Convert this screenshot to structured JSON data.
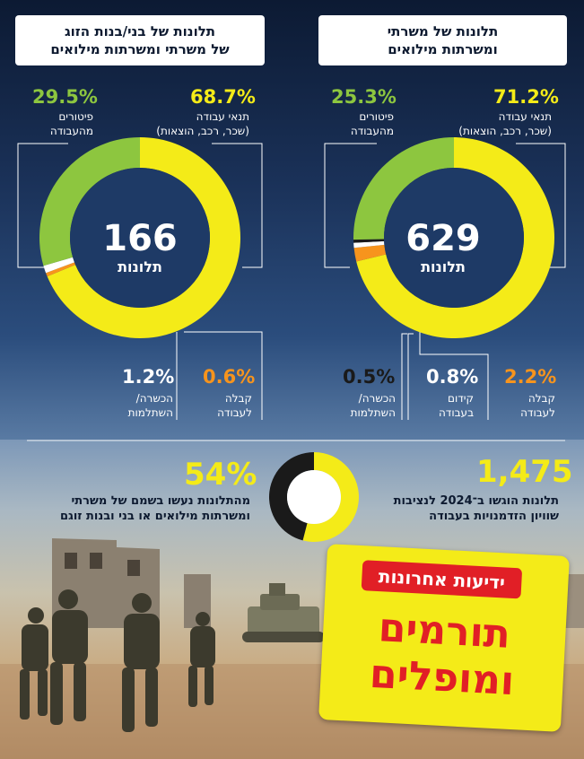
{
  "chart_data": [
    {
      "type": "pie",
      "title": "תלונות של משרתי ומשרתות מילואים",
      "center_value": "629",
      "center_label": "תלונות",
      "series": [
        {
          "name": "תנאי עבודה (שכר, רכב, הוצאות)",
          "value": 71.2,
          "label": "71.2%",
          "color": "#f4eb18"
        },
        {
          "name": "קבלה לעבודה",
          "value": 2.2,
          "label": "2.2%",
          "color": "#f7941d"
        },
        {
          "name": "קידום בעבודה",
          "value": 0.8,
          "label": "0.8%",
          "color": "#ffffff"
        },
        {
          "name": "הכשרה/ השתלמות",
          "value": 0.5,
          "label": "0.5%",
          "color": "#1a1a1a"
        },
        {
          "name": "פיטורים מהעבודה",
          "value": 25.3,
          "label": "25.3%",
          "color": "#8dc63f"
        }
      ]
    },
    {
      "type": "pie",
      "title": "תלונות של בני/בנות הזוג של משרתי ומשרתות מילואים",
      "center_value": "166",
      "center_label": "תלונות",
      "series": [
        {
          "name": "תנאי עבודה (שכר, רכב, הוצאות)",
          "value": 68.7,
          "label": "68.7%",
          "color": "#f4eb18"
        },
        {
          "name": "קבלה לעבודה",
          "value": 0.6,
          "label": "0.6%",
          "color": "#f7941d"
        },
        {
          "name": "הכשרה/ השתלמות",
          "value": 1.2,
          "label": "1.2%",
          "color": "#ffffff"
        },
        {
          "name": "פיטורים מהעבודה",
          "value": 29.5,
          "label": "29.5%",
          "color": "#8dc63f"
        }
      ]
    },
    {
      "type": "pie",
      "series": [
        {
          "name": "מהתלונות נעשו בשמם של משרתי ומשרתות מילואים או בני ובנות זוגם",
          "value": 54,
          "label": "54%",
          "color": "#f4eb18"
        },
        {
          "name": "",
          "value": 46,
          "color": "#1a1a1a"
        }
      ]
    }
  ],
  "right_panel": {
    "title_line1": "תלונות של משרתי",
    "title_line2": "ומשרתות מילואים",
    "labels": {
      "work_conditions_1": "תנאי עבודה",
      "work_conditions_2": "(שכר, רכב, הוצאות)",
      "dismissal_1": "פיטורים",
      "dismissal_2": "מהעבודה",
      "hiring_1": "קבלה",
      "hiring_2": "לעבודה",
      "promotion_1": "קידום",
      "promotion_2": "בעבודה",
      "training_1": "הכשרה/",
      "training_2": "השתלמות"
    }
  },
  "left_panel": {
    "title_line1": "תלונות של בני/בנות הזוג",
    "title_line2": "של משרתי ומשרתות מילואים",
    "labels": {
      "work_conditions_1": "תנאי עבודה",
      "work_conditions_2": "(שכר, רכב, הוצאות)",
      "dismissal_1": "פיטורים",
      "dismissal_2": "מהעבודה",
      "hiring_1": "קבלה",
      "hiring_2": "לעבודה",
      "training_1": "הכשרה/",
      "training_2": "השתלמות"
    }
  },
  "stats": {
    "total_value": "1,475",
    "total_label_1": "תלונות הוגשו ב־2024 לנציבות",
    "total_label_2": "שוויון הזדמנויות בעבודה",
    "share_value": "54%",
    "share_label_1": "מהתלונות נעשו בשמם של משרתי",
    "share_label_2": "ומשרתות מילואים או בני ובנות זוגם"
  },
  "logo": {
    "masthead": "ידיעות אחרונות",
    "line1": "תורמים",
    "line2": "ומופלים"
  },
  "colors": {
    "yellow": "#f4eb18",
    "green": "#8dc63f",
    "orange": "#f7941d",
    "red": "#e11f26",
    "navy": "#1d3a63"
  }
}
